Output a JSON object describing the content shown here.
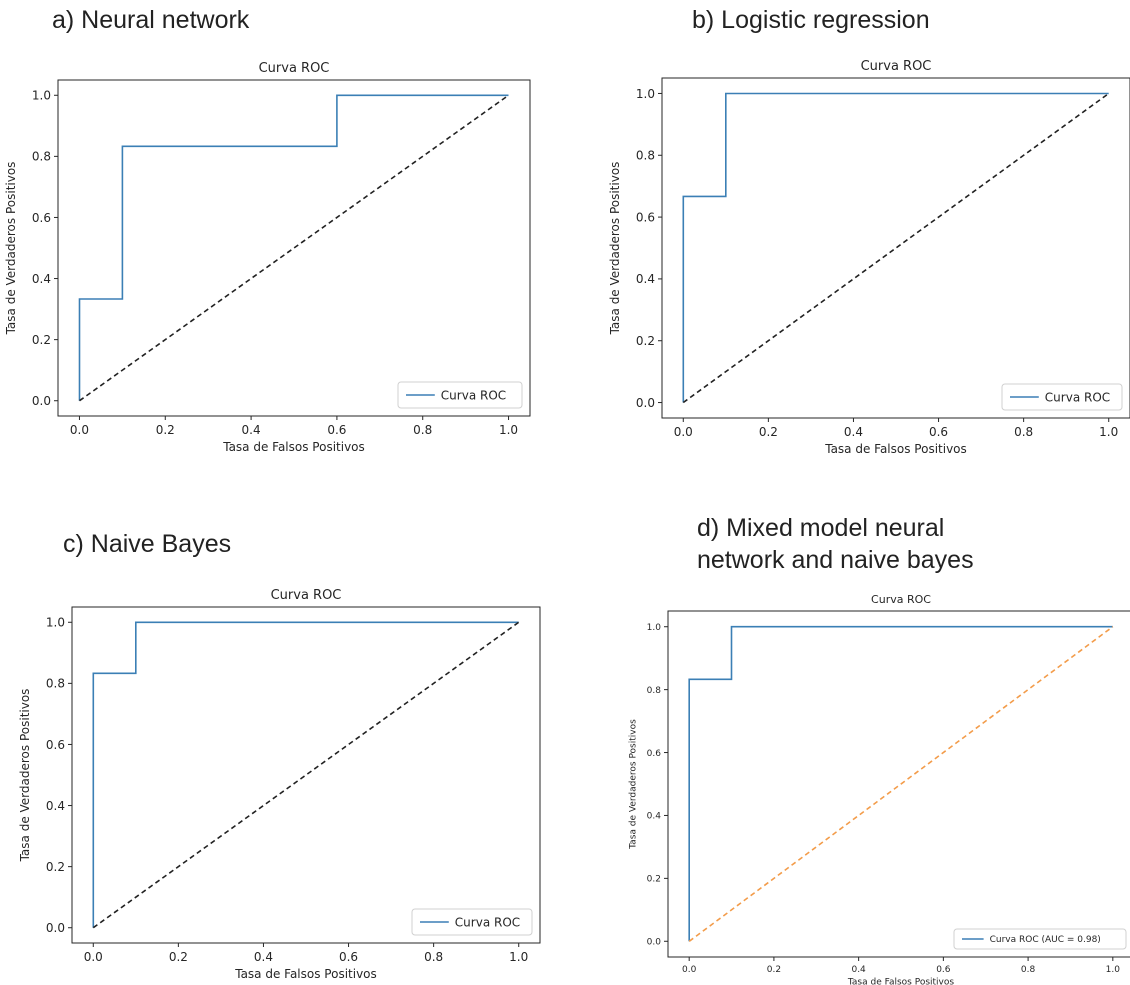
{
  "colors": {
    "roc": "#3b7fb5",
    "diag_black": "#222222",
    "diag_orange": "#f39c4a"
  },
  "panels": [
    {
      "heading": "a) Neural network",
      "chart_data": {
        "type": "line",
        "title": "Curva ROC",
        "xlabel": "Tasa de Falsos Positivos",
        "ylabel": "Tasa de Verdaderos Positivos",
        "xlim": [
          -0.05,
          1.05
        ],
        "ylim": [
          -0.05,
          1.05
        ],
        "ticks": [
          "0.0",
          "0.2",
          "0.4",
          "0.6",
          "0.8",
          "1.0"
        ],
        "legend": {
          "label": "Curva ROC",
          "position": "lower right"
        },
        "series": [
          {
            "name": "Curva ROC",
            "color": "#3b7fb5",
            "style": "solid",
            "x": [
              0,
              0,
              0.1,
              0.1,
              0.6,
              0.6,
              1.0
            ],
            "y": [
              0,
              0.333,
              0.333,
              0.833,
              0.833,
              1.0,
              1.0
            ]
          },
          {
            "color": "#222222",
            "style": "dashed",
            "x": [
              0,
              1
            ],
            "y": [
              0,
              1
            ]
          }
        ]
      }
    },
    {
      "heading": "b) Logistic regression",
      "chart_data": {
        "type": "line",
        "title": "Curva ROC",
        "xlabel": "Tasa de Falsos Positivos",
        "ylabel": "Tasa de Verdaderos Positivos",
        "xlim": [
          -0.05,
          1.05
        ],
        "ylim": [
          -0.05,
          1.05
        ],
        "ticks": [
          "0.0",
          "0.2",
          "0.4",
          "0.6",
          "0.8",
          "1.0"
        ],
        "legend": {
          "label": "Curva ROC",
          "position": "lower right"
        },
        "series": [
          {
            "name": "Curva ROC",
            "color": "#3b7fb5",
            "style": "solid",
            "x": [
              0,
              0,
              0.1,
              0.1,
              1.0
            ],
            "y": [
              0,
              0.667,
              0.667,
              1.0,
              1.0
            ]
          },
          {
            "color": "#222222",
            "style": "dashed",
            "x": [
              0,
              1
            ],
            "y": [
              0,
              1
            ]
          }
        ]
      }
    },
    {
      "heading": "c) Naive Bayes",
      "chart_data": {
        "type": "line",
        "title": "Curva ROC",
        "xlabel": "Tasa de Falsos Positivos",
        "ylabel": "Tasa de Verdaderos Positivos",
        "xlim": [
          -0.05,
          1.05
        ],
        "ylim": [
          -0.05,
          1.05
        ],
        "ticks": [
          "0.0",
          "0.2",
          "0.4",
          "0.6",
          "0.8",
          "1.0"
        ],
        "legend": {
          "label": "Curva ROC",
          "position": "lower right"
        },
        "series": [
          {
            "name": "Curva ROC",
            "color": "#3b7fb5",
            "style": "solid",
            "x": [
              0,
              0,
              0.1,
              0.1,
              1.0
            ],
            "y": [
              0,
              0.833,
              0.833,
              1.0,
              1.0
            ]
          },
          {
            "color": "#222222",
            "style": "dashed",
            "x": [
              0,
              1
            ],
            "y": [
              0,
              1
            ]
          }
        ]
      }
    },
    {
      "heading_lines": [
        "d) Mixed model neural",
        "network and naive bayes"
      ],
      "chart_data": {
        "type": "line",
        "title": "Curva ROC",
        "xlabel": "Tasa de Falsos Positivos",
        "ylabel": "Tasa de Verdaderos Positivos",
        "xlim": [
          -0.05,
          1.05
        ],
        "ylim": [
          -0.05,
          1.05
        ],
        "ticks": [
          "0.0",
          "0.2",
          "0.4",
          "0.6",
          "0.8",
          "1.0"
        ],
        "legend": {
          "label": "Curva ROC (AUC = 0.98)",
          "position": "lower right"
        },
        "series": [
          {
            "name": "Curva ROC (AUC = 0.98)",
            "color": "#3b7fb5",
            "style": "solid",
            "x": [
              0,
              0,
              0.1,
              0.1,
              1.0
            ],
            "y": [
              0,
              0.833,
              0.833,
              1.0,
              1.0
            ]
          },
          {
            "color": "#f39c4a",
            "style": "dashed",
            "x": [
              0,
              1
            ],
            "y": [
              0,
              1
            ]
          }
        ]
      }
    }
  ]
}
